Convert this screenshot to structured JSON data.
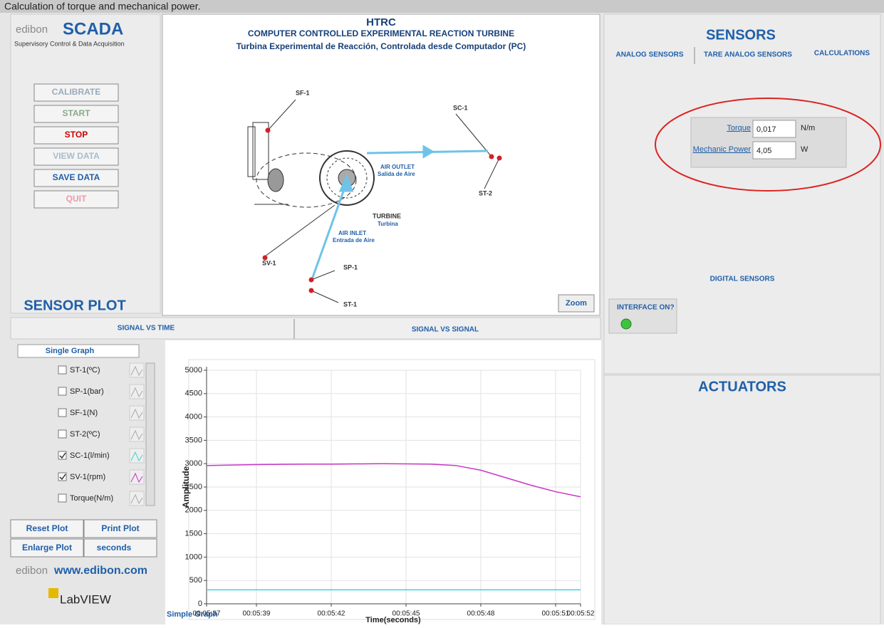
{
  "caption": "Calculation of torque and mechanical power.",
  "logo": {
    "brand": "edibon",
    "product": "SCADA",
    "tagline": "Supervisory Control & Data Acquisition"
  },
  "buttons": [
    "CALIBRATE",
    "START",
    "STOP",
    "VIEW DATA",
    "SAVE DATA",
    "QUIT"
  ],
  "diagram": {
    "title": "HTRC",
    "subtitle": "COMPUTER CONTROLLED EXPERIMENTAL REACTION TURBINE",
    "subtitle_es": "Turbina Experimental de Reacción, Controlada desde Computador (PC)",
    "labels": {
      "sf1": "SF-1",
      "sc1": "SC-1",
      "st2": "ST-2",
      "outlet": "AIR OUTLET",
      "outlet_es": "Salida de Aire",
      "turbine": "TURBINE",
      "turbine_es": "Turbina",
      "inlet": "AIR INLET",
      "inlet_es": "Entrada de Aire",
      "sv1": "SV-1",
      "sp1": "SP-1",
      "st1": "ST-1"
    },
    "zoom": "Zoom"
  },
  "sensors": {
    "title": "SENSORS",
    "tabs": [
      "ANALOG SENSORS",
      "TARE ANALOG SENSORS",
      "CALCULATIONS"
    ],
    "calculations": [
      {
        "label": "Torque",
        "value": "0,017",
        "unit": "N/m"
      },
      {
        "label": "Mechanic Power",
        "value": "4,05",
        "unit": "W"
      }
    ],
    "digital": {
      "title": "DIGITAL SENSORS",
      "interface": "INTERFACE ON?"
    }
  },
  "actuators": {
    "title": "ACTUATORS"
  },
  "sensor_plot": {
    "title": "SENSOR PLOT",
    "tabs": [
      "SIGNAL VS TIME",
      "SIGNAL VS SIGNAL"
    ],
    "mode": "Single Graph",
    "buttons": [
      "Reset Plot",
      "Print Plot",
      "Enlarge Plot"
    ],
    "unit": "seconds",
    "website": "www.edibon.com",
    "labview": "LabVIEW",
    "graph_name": "Simple Graph",
    "chart": {
      "type": "line",
      "ylabel": "Amplitude",
      "xlabel": "Time(seconds)",
      "xlim": [
        337,
        352
      ],
      "xticks": [
        {
          "value": 337,
          "label": "00:05:37"
        },
        {
          "value": 339,
          "label": "00:05:39"
        },
        {
          "value": 342,
          "label": "00:05:42"
        },
        {
          "value": 345,
          "label": "00:05:45"
        },
        {
          "value": 348,
          "label": "00:05:48"
        },
        {
          "value": 351,
          "label": "00:05:51"
        },
        {
          "value": 352,
          "label": "00:05:52"
        }
      ],
      "ylim": [
        0,
        5000
      ],
      "yticks": [
        0,
        500,
        1000,
        1500,
        2000,
        2500,
        3000,
        3500,
        4000,
        4500,
        5000
      ],
      "grid": true,
      "x": [
        337,
        338,
        339,
        340,
        341,
        342,
        343,
        344,
        345,
        346,
        347,
        348,
        349,
        350,
        351,
        352
      ],
      "series": [
        {
          "name": "ST-1(ºC)",
          "checked": false
        },
        {
          "name": "SP-1(bar)",
          "checked": false
        },
        {
          "name": "SF-1(N)",
          "checked": false
        },
        {
          "name": "ST-2(ºC)",
          "checked": false
        },
        {
          "name": "SC-1(l/min)",
          "checked": true,
          "color": "#3fd3d3",
          "values": [
            300,
            300,
            300,
            300,
            300,
            300,
            300,
            300,
            300,
            300,
            300,
            300,
            300,
            300,
            300,
            300
          ]
        },
        {
          "name": "SV-1(rpm)",
          "checked": true,
          "color": "#c637c6",
          "values": [
            2960,
            2970,
            2980,
            2985,
            2990,
            2990,
            2995,
            3000,
            2995,
            2990,
            2960,
            2860,
            2700,
            2540,
            2400,
            2290
          ]
        },
        {
          "name": "Torque(N/m)",
          "checked": false
        }
      ]
    }
  }
}
